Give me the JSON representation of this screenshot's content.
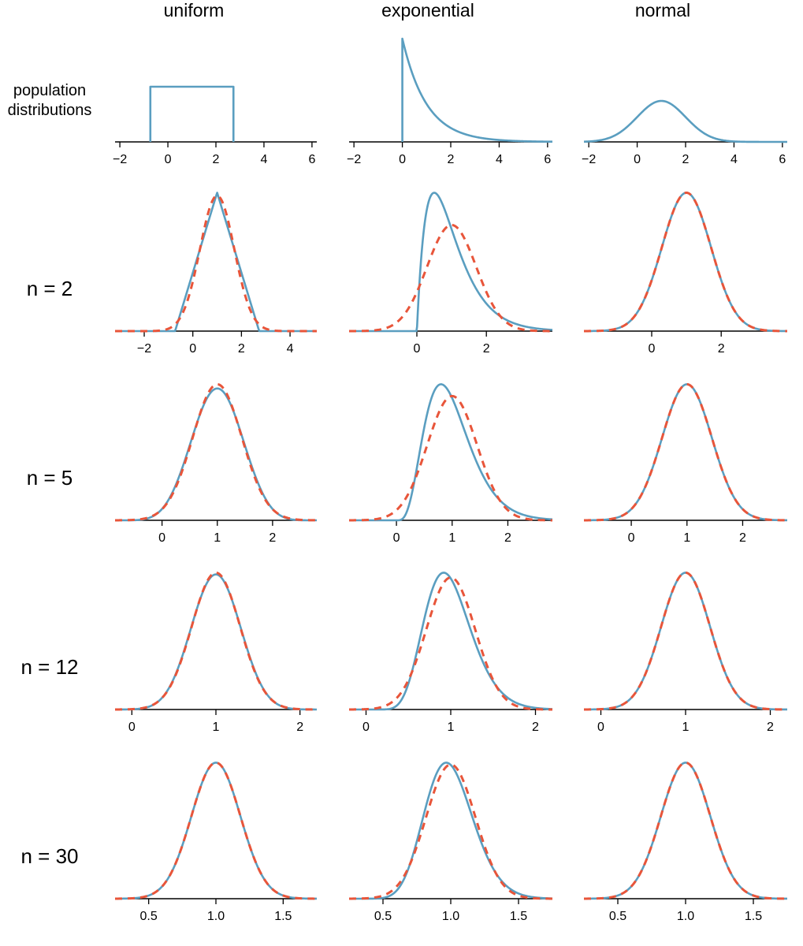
{
  "colors": {
    "sample_density": "#5a9ec0",
    "normal_approximation": "#e8553a"
  },
  "columns": [
    "uniform",
    "exponential",
    "normal"
  ],
  "row_labels": [
    "population\ndistributions",
    "n = 2",
    "n = 5",
    "n = 12",
    "n = 30"
  ],
  "chart_data": [
    {
      "type": "line",
      "row": "population distributions",
      "column": "uniform",
      "family": "uniform",
      "params": {
        "a": -0.73,
        "b": 2.73
      },
      "xlim": [
        -2.2,
        6.2
      ],
      "xticks": [
        -2,
        0,
        2,
        4,
        6
      ],
      "tick_labels": [
        "−2",
        "0",
        "2",
        "4",
        "6"
      ]
    },
    {
      "type": "line",
      "row": "population distributions",
      "column": "exponential",
      "family": "exponential",
      "params": {
        "rate": 1
      },
      "xlim": [
        -2.2,
        6.2
      ],
      "xticks": [
        -2,
        0,
        2,
        4,
        6
      ],
      "tick_labels": [
        "−2",
        "0",
        "2",
        "4",
        "6"
      ]
    },
    {
      "type": "line",
      "row": "population distributions",
      "column": "normal",
      "family": "normal",
      "params": {
        "mean": 1,
        "sd": 1
      },
      "xlim": [
        -2.2,
        6.2
      ],
      "xticks": [
        -2,
        0,
        2,
        4,
        6
      ],
      "tick_labels": [
        "−2",
        "0",
        "2",
        "4",
        "6"
      ]
    },
    {
      "type": "line",
      "row": "n = 2",
      "column": "uniform",
      "family": "uniform",
      "n": 2,
      "xlim": [
        -3.2,
        5.1
      ],
      "xticks": [
        -2,
        0,
        2,
        4
      ],
      "tick_labels": [
        "−2",
        "0",
        "2",
        "4"
      ]
    },
    {
      "type": "line",
      "row": "n = 2",
      "column": "exponential",
      "family": "exponential",
      "n": 2,
      "xlim": [
        -1.95,
        3.9
      ],
      "xticks": [
        0,
        2
      ],
      "tick_labels": [
        "0",
        "2"
      ]
    },
    {
      "type": "line",
      "row": "n = 2",
      "column": "normal",
      "family": "normal",
      "n": 2,
      "xlim": [
        -1.95,
        3.9
      ],
      "xticks": [
        0,
        2
      ],
      "tick_labels": [
        "0",
        "2"
      ]
    },
    {
      "type": "line",
      "row": "n = 5",
      "column": "uniform",
      "family": "uniform",
      "n": 5,
      "xlim": [
        -0.85,
        2.8
      ],
      "xticks": [
        0,
        1,
        2
      ],
      "tick_labels": [
        "0",
        "1",
        "2"
      ]
    },
    {
      "type": "line",
      "row": "n = 5",
      "column": "exponential",
      "family": "exponential",
      "n": 5,
      "xlim": [
        -0.85,
        2.8
      ],
      "xticks": [
        0,
        1,
        2
      ],
      "tick_labels": [
        "0",
        "1",
        "2"
      ]
    },
    {
      "type": "line",
      "row": "n = 5",
      "column": "normal",
      "family": "normal",
      "n": 5,
      "xlim": [
        -0.85,
        2.8
      ],
      "xticks": [
        0,
        1,
        2
      ],
      "tick_labels": [
        "0",
        "1",
        "2"
      ]
    },
    {
      "type": "line",
      "row": "n = 12",
      "column": "uniform",
      "family": "uniform",
      "n": 12,
      "xlim": [
        -0.2,
        2.2
      ],
      "xticks": [
        0,
        1,
        2
      ],
      "tick_labels": [
        "0",
        "1",
        "2"
      ]
    },
    {
      "type": "line",
      "row": "n = 12",
      "column": "exponential",
      "family": "exponential",
      "n": 12,
      "xlim": [
        -0.2,
        2.2
      ],
      "xticks": [
        0,
        1,
        2
      ],
      "tick_labels": [
        "0",
        "1",
        "2"
      ]
    },
    {
      "type": "line",
      "row": "n = 12",
      "column": "normal",
      "family": "normal",
      "n": 12,
      "xlim": [
        -0.2,
        2.2
      ],
      "xticks": [
        0,
        1,
        2
      ],
      "tick_labels": [
        "0",
        "1",
        "2"
      ]
    },
    {
      "type": "line",
      "row": "n = 30",
      "column": "uniform",
      "family": "uniform",
      "n": 30,
      "xlim": [
        0.25,
        1.75
      ],
      "xticks": [
        0.5,
        1.0,
        1.5
      ],
      "tick_labels": [
        "0.5",
        "1.0",
        "1.5"
      ]
    },
    {
      "type": "line",
      "row": "n = 30",
      "column": "exponential",
      "family": "exponential",
      "n": 30,
      "xlim": [
        0.25,
        1.75
      ],
      "xticks": [
        0.5,
        1.0,
        1.5
      ],
      "tick_labels": [
        "0.5",
        "1.0",
        "1.5"
      ]
    },
    {
      "type": "line",
      "row": "n = 30",
      "column": "normal",
      "family": "normal",
      "n": 30,
      "xlim": [
        0.25,
        1.75
      ],
      "xticks": [
        0.5,
        1.0,
        1.5
      ],
      "tick_labels": [
        "0.5",
        "1.0",
        "1.5"
      ]
    }
  ]
}
